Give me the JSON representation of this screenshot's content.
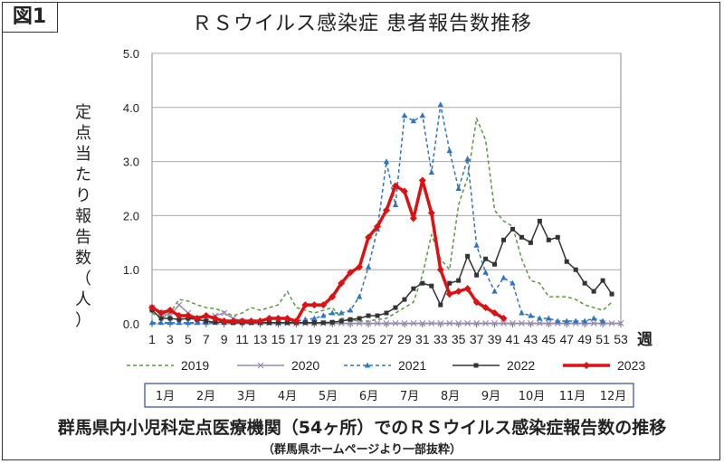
{
  "figure_label": "図1",
  "caption": "群馬県内小児科定点医療機関（54ヶ所）でのＲＳウイルス感染症報告数の推移",
  "source": "（群馬県ホームページより一部抜粋）",
  "chart_data": {
    "type": "line",
    "title": "ＲＳウイルス感染症 患者報告数推移",
    "ylabel": "定点当たり報告数（人）",
    "xlabel": "週",
    "ylim": [
      0,
      5
    ],
    "yticks": [
      "0.0",
      "1.0",
      "2.0",
      "3.0",
      "4.0",
      "5.0"
    ],
    "xlim": [
      1,
      53
    ],
    "xticks": [
      "1",
      "3",
      "5",
      "7",
      "9",
      "11",
      "13",
      "15",
      "17",
      "19",
      "21",
      "23",
      "25",
      "27",
      "29",
      "31",
      "33",
      "35",
      "37",
      "39",
      "41",
      "43",
      "45",
      "47",
      "49",
      "51",
      "53"
    ],
    "grid": true,
    "legend_position": "bottom",
    "months": [
      "1月",
      "2月",
      "3月",
      "4月",
      "5月",
      "6月",
      "7月",
      "8月",
      "9月",
      "10月",
      "11月",
      "12月"
    ],
    "series": [
      {
        "name": "2019",
        "color": "#5a9a3a",
        "style": "dashed",
        "marker": "none",
        "values": [
          0.2,
          0.1,
          0.2,
          0.45,
          0.42,
          0.35,
          0.3,
          0.28,
          0.22,
          0.15,
          0.2,
          0.3,
          0.25,
          0.3,
          0.35,
          0.6,
          0.3,
          0.25,
          0.2,
          0.25,
          0.3,
          0.1,
          0.08,
          0.05,
          0.05,
          0.08,
          0.1,
          0.2,
          0.3,
          0.4,
          0.9,
          1.65,
          1.2,
          1.0,
          2.2,
          2.7,
          3.8,
          3.4,
          2.1,
          1.9,
          1.8,
          1.2,
          0.8,
          0.75,
          0.5,
          0.5,
          0.5,
          0.45,
          0.35,
          0.3,
          0.25,
          0.4
        ]
      },
      {
        "name": "2020",
        "color": "#9a88b8",
        "style": "solid",
        "marker": "x",
        "values": [
          0.3,
          0.2,
          0.15,
          0.35,
          0.2,
          0.1,
          0.12,
          0.15,
          0.2,
          0.1,
          0.05,
          0.03,
          0.02,
          0.02,
          0.01,
          0.01,
          0.01,
          0.01,
          0.01,
          0.01,
          0.01,
          0.01,
          0.01,
          0.01,
          0.01,
          0.01,
          0.01,
          0.01,
          0.01,
          0.01,
          0.01,
          0.01,
          0.01,
          0.01,
          0.01,
          0.01,
          0.01,
          0.01,
          0.01,
          0.01,
          0.01,
          0.01,
          0.01,
          0.01,
          0.01,
          0.01,
          0.01,
          0.01,
          0.01,
          0.01,
          0.01,
          0.01,
          0.01
        ]
      },
      {
        "name": "2021",
        "color": "#2e76c0",
        "style": "dashed",
        "marker": "triangle",
        "values": [
          0.02,
          0.02,
          0.02,
          0.02,
          0.02,
          0.02,
          0.02,
          0.02,
          0.02,
          0.02,
          0.02,
          0.02,
          0.02,
          0.02,
          0.02,
          0.03,
          0.05,
          0.08,
          0.1,
          0.15,
          0.2,
          0.2,
          0.25,
          0.5,
          1.05,
          1.75,
          3.0,
          2.2,
          3.85,
          3.75,
          3.85,
          2.8,
          4.05,
          3.2,
          2.5,
          3.05,
          1.45,
          0.95,
          0.6,
          0.85,
          0.75,
          0.2,
          0.15,
          0.1,
          0.1,
          0.05,
          0.05,
          0.05,
          0.05,
          0.1,
          0.05
        ]
      },
      {
        "name": "2022",
        "color": "#333333",
        "style": "solid",
        "marker": "square",
        "values": [
          0.25,
          0.1,
          0.1,
          0.08,
          0.1,
          0.08,
          0.05,
          0.03,
          0.03,
          0.02,
          0.02,
          0.02,
          0.02,
          0.02,
          0.02,
          0.02,
          0.02,
          0.02,
          0.02,
          0.02,
          0.03,
          0.05,
          0.08,
          0.1,
          0.15,
          0.15,
          0.2,
          0.3,
          0.45,
          0.65,
          0.75,
          0.7,
          0.35,
          0.75,
          0.8,
          1.25,
          0.9,
          1.2,
          1.1,
          1.55,
          1.75,
          1.6,
          1.5,
          1.9,
          1.55,
          1.6,
          1.15,
          1.0,
          0.75,
          0.6,
          0.8,
          0.55
        ]
      },
      {
        "name": "2023",
        "color": "#dd1111",
        "style": "solid",
        "marker": "diamond",
        "values": [
          0.3,
          0.2,
          0.25,
          0.15,
          0.15,
          0.1,
          0.15,
          0.1,
          0.05,
          0.05,
          0.05,
          0.05,
          0.05,
          0.1,
          0.1,
          0.1,
          0.05,
          0.35,
          0.35,
          0.35,
          0.5,
          0.75,
          0.95,
          1.05,
          1.6,
          1.8,
          2.1,
          2.55,
          2.45,
          1.95,
          2.65,
          2.05,
          1.0,
          0.55,
          0.6,
          0.65,
          0.4,
          0.3,
          0.2,
          0.1
        ]
      }
    ]
  }
}
